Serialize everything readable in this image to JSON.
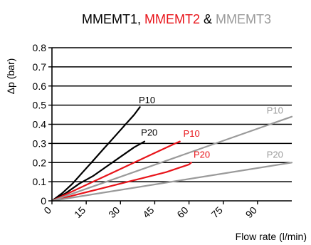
{
  "chart_data": {
    "type": "line",
    "title": {
      "parts": [
        {
          "text": "MMEMT1",
          "color": "#000000"
        },
        {
          "text": ", ",
          "color": "#000000"
        },
        {
          "text": "MMEMT2",
          "color": "#e8141a"
        },
        {
          "text": " & ",
          "color": "#000000"
        },
        {
          "text": "MMEMT3",
          "color": "#9a9a9a"
        }
      ]
    },
    "xlabel": "Flow rate (l/min)",
    "ylabel": "Δp (bar)",
    "xlim": [
      0,
      105
    ],
    "ylim": [
      0,
      0.8
    ],
    "xticks": [
      0,
      15,
      30,
      45,
      60,
      75,
      90
    ],
    "yticks": [
      0,
      0.1,
      0.2,
      0.3,
      0.4,
      0.5,
      0.6,
      0.7,
      0.8
    ],
    "grid": "horizontal",
    "series": [
      {
        "name": "P10",
        "group": "MMEMT1",
        "color": "#000000",
        "x": [
          0,
          4.5,
          9,
          13.5,
          18,
          22.5,
          27,
          31.5,
          36,
          38.5
        ],
        "y": [
          0,
          0.04,
          0.09,
          0.15,
          0.21,
          0.27,
          0.33,
          0.39,
          0.45,
          0.49
        ]
      },
      {
        "name": "P20",
        "group": "MMEMT1",
        "color": "#000000",
        "x": [
          0,
          6,
          12,
          18,
          24,
          30,
          36,
          40.5
        ],
        "y": [
          0,
          0.04,
          0.09,
          0.13,
          0.18,
          0.23,
          0.28,
          0.31
        ]
      },
      {
        "name": "P10",
        "group": "MMEMT2",
        "color": "#e8141a",
        "x": [
          0,
          9,
          18,
          27,
          36,
          45,
          54,
          56
        ],
        "y": [
          0,
          0.05,
          0.1,
          0.15,
          0.2,
          0.25,
          0.3,
          0.31
        ]
      },
      {
        "name": "P20",
        "group": "MMEMT2",
        "color": "#e8141a",
        "x": [
          0,
          10,
          20,
          30,
          40,
          50,
          60,
          61
        ],
        "y": [
          0,
          0.03,
          0.06,
          0.09,
          0.12,
          0.15,
          0.19,
          0.2
        ]
      },
      {
        "name": "P10",
        "group": "MMEMT3",
        "color": "#9a9a9a",
        "x": [
          0,
          105
        ],
        "y": [
          0,
          0.44
        ]
      },
      {
        "name": "P20",
        "group": "MMEMT3",
        "color": "#9a9a9a",
        "x": [
          0,
          105
        ],
        "y": [
          0,
          0.2
        ]
      }
    ],
    "annotations": [
      {
        "text": "P10",
        "series_index": 0,
        "at": [
          38,
          0.51
        ],
        "color": "#000000"
      },
      {
        "text": "P20",
        "series_index": 1,
        "at": [
          39,
          0.34
        ],
        "color": "#000000"
      },
      {
        "text": "P10",
        "series_index": 2,
        "at": [
          57.5,
          0.335
        ],
        "color": "#e8141a"
      },
      {
        "text": "P20",
        "series_index": 3,
        "at": [
          62,
          0.225
        ],
        "color": "#e8141a"
      },
      {
        "text": "P10",
        "series_index": 4,
        "at": [
          94,
          0.455
        ],
        "color": "#9a9a9a"
      },
      {
        "text": "P20",
        "series_index": 5,
        "at": [
          94,
          0.225
        ],
        "color": "#9a9a9a"
      }
    ]
  }
}
